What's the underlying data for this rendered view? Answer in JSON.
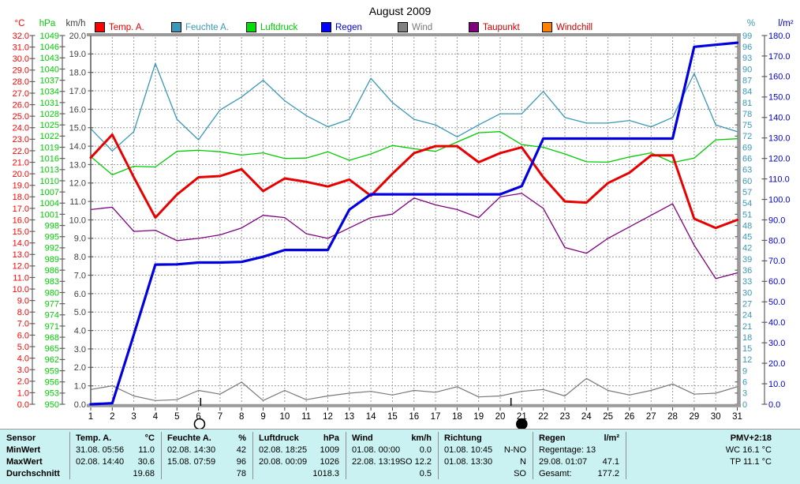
{
  "title": "August 2009",
  "axis_headers": {
    "left": [
      {
        "label": "°C",
        "color": "#ff0000"
      },
      {
        "label": "hPa",
        "color": "#00cc00"
      },
      {
        "label": "km/h",
        "color": "#404040"
      }
    ],
    "right": [
      {
        "label": "%",
        "color": "#3898b8"
      },
      {
        "label": "l/m²",
        "color": "#0000cc"
      }
    ]
  },
  "legend": [
    {
      "label": "Temp. A.",
      "swatch": "#ff0000",
      "text_color": "#e80000"
    },
    {
      "label": "Feuchte A.",
      "swatch": "#3898b8",
      "text_color": "#3898b8"
    },
    {
      "label": "Luftdruck",
      "swatch": "#00dd00",
      "text_color": "#00cc00"
    },
    {
      "label": "Regen",
      "swatch": "#0000ff",
      "text_color": "#0000e0"
    },
    {
      "label": "Wind",
      "swatch": "#808080",
      "text_color": "#787878"
    },
    {
      "label": "Taupunkt",
      "swatch": "#800080",
      "text_color": "#cc0000"
    },
    {
      "label": "Windchill",
      "swatch": "#ff8000",
      "text_color": "#cc0000"
    }
  ],
  "chart_data": {
    "type": "line",
    "title": "August 2009",
    "days": [
      1,
      2,
      3,
      4,
      5,
      6,
      7,
      8,
      9,
      10,
      11,
      12,
      13,
      14,
      15,
      16,
      17,
      18,
      19,
      20,
      21,
      22,
      23,
      24,
      25,
      26,
      27,
      28,
      29,
      30,
      31
    ],
    "grid": true,
    "axes": {
      "left": [
        {
          "name": "temperature",
          "unit": "°C",
          "min": 0,
          "max": 32,
          "step": 1,
          "decimals": 1,
          "color": "#ff0000"
        },
        {
          "name": "pressure",
          "unit": "hPa",
          "min": 950,
          "max": 1049,
          "step": 3,
          "decimals": 0,
          "color": "#00cc00"
        },
        {
          "name": "wind",
          "unit": "km/h",
          "min": 0,
          "max": 20,
          "step": 1,
          "decimals": 1,
          "color": "#404040"
        }
      ],
      "right": [
        {
          "name": "humidity",
          "unit": "%",
          "min": 0,
          "max": 99,
          "step": 3,
          "decimals": 0,
          "color": "#3898b8"
        },
        {
          "name": "rain",
          "unit": "l/m²",
          "min": 0,
          "max": 180,
          "step": 10,
          "decimals": 1,
          "color": "#0000cc"
        }
      ]
    },
    "series": [
      {
        "name": "Luftdruck",
        "axis": "pressure",
        "color": "#00cc00",
        "width": 1.3,
        "values": [
          1016.5,
          1011.6,
          1013.9,
          1013.7,
          1017.9,
          1018.2,
          1017.8,
          1016.9,
          1017.5,
          1016.0,
          1016.1,
          1017.8,
          1015.5,
          1017.2,
          1019.5,
          1018.6,
          1017.9,
          1020.4,
          1022.9,
          1023.2,
          1019.7,
          1019.0,
          1017.2,
          1015.1,
          1015.0,
          1016.4,
          1017.5,
          1014.9,
          1016.1,
          1021.0,
          1021.3
        ]
      },
      {
        "name": "Feuchte A.",
        "axis": "humidity",
        "color": "#3898b8",
        "width": 1.3,
        "values": [
          74,
          68,
          73.2,
          91.5,
          76.5,
          71,
          79,
          82.5,
          87,
          81.5,
          77.5,
          74.5,
          76.5,
          87.5,
          81,
          76.5,
          75,
          71.8,
          75,
          78,
          78,
          84,
          77,
          75.5,
          75.5,
          76.2,
          74.5,
          77,
          88.8,
          75,
          73.2
        ]
      },
      {
        "name": "Taupunkt",
        "axis": "temperature",
        "color": "#800080",
        "width": 1.3,
        "values": [
          16.9,
          17.1,
          15.0,
          15.1,
          14.2,
          14.4,
          14.7,
          15.3,
          16.4,
          16.2,
          14.8,
          14.4,
          15.3,
          16.2,
          16.5,
          17.9,
          17.3,
          16.9,
          16.2,
          18.0,
          18.3,
          17.0,
          13.6,
          13.1,
          14.4,
          15.4,
          16.4,
          17.4,
          13.8,
          10.9,
          11.4
        ]
      },
      {
        "name": "Wind",
        "axis": "wind",
        "color": "#787878",
        "width": 1.2,
        "values": [
          0.8,
          1.0,
          0.45,
          0.2,
          0.25,
          0.75,
          0.55,
          1.2,
          0.2,
          0.75,
          0.25,
          0.45,
          0.6,
          0.7,
          0.5,
          0.75,
          0.65,
          0.95,
          0.4,
          0.45,
          0.7,
          0.8,
          0.45,
          1.4,
          0.75,
          0.5,
          0.75,
          1.1,
          0.55,
          0.6,
          0.95
        ]
      },
      {
        "name": "Temp. A.",
        "axis": "temperature",
        "color": "#e80000",
        "width": 3,
        "values": [
          21.4,
          23.4,
          19.7,
          16.2,
          18.2,
          19.7,
          19.8,
          20.4,
          18.5,
          19.6,
          19.3,
          18.9,
          19.5,
          18.1,
          20.0,
          21.8,
          22.4,
          22.4,
          21.0,
          21.8,
          22.3,
          19.7,
          17.6,
          17.5,
          19.2,
          20.1,
          21.6,
          21.6,
          16.1,
          15.3,
          16.0
        ]
      },
      {
        "name": "Regen",
        "axis": "rain",
        "color": "#0000e0",
        "width": 3.2,
        "values": [
          0,
          0.5,
          34,
          68.2,
          68.3,
          69.2,
          69.2,
          69.5,
          72,
          75.3,
          75.3,
          75.3,
          95,
          102.5,
          102.5,
          102.5,
          102.5,
          102.5,
          102.5,
          102.5,
          106.5,
          129.7,
          129.7,
          129.7,
          129.7,
          129.7,
          129.7,
          129.7,
          174.5,
          175.5,
          176.5
        ]
      },
      {
        "name": "Windchill",
        "axis": "temperature",
        "color": "#ff8000",
        "width": 1.3,
        "values": null
      }
    ],
    "moon_marks": [
      {
        "type": "full-moon",
        "symbol": "open-circle",
        "day": 6.05,
        "tick_day": 6.1
      },
      {
        "type": "new-moon",
        "symbol": "filled-circle",
        "day": 21.0,
        "tick_day": 20.5
      }
    ]
  },
  "table": {
    "row_labels": [
      "Sensor",
      "MinWert",
      "MaxWert",
      "Durchschnitt"
    ],
    "columns": [
      {
        "header": "Temp. A.",
        "unit": "°C",
        "rows": [
          [
            "31.08.  05:56",
            "11.0"
          ],
          [
            "02.08.  14:40",
            "30.6"
          ],
          [
            "",
            "19.68"
          ]
        ]
      },
      {
        "header": "Feuchte A.",
        "unit": "%",
        "rows": [
          [
            "02.08.  14:30",
            "42"
          ],
          [
            "15.08.  07:59",
            "96"
          ],
          [
            "",
            "78"
          ]
        ]
      },
      {
        "header": "Luftdruck",
        "unit": "hPa",
        "rows": [
          [
            "02.08.  18:25",
            "1009"
          ],
          [
            "20.08.  00:09",
            "1026"
          ],
          [
            "",
            "1018.3"
          ]
        ]
      },
      {
        "header": "Wind",
        "unit": "km/h",
        "rows": [
          [
            "01.08.  00:00",
            "0.0"
          ],
          [
            "22.08.  13:19",
            "SO 12.2"
          ],
          [
            "",
            "0.5"
          ]
        ]
      },
      {
        "header": "Richtung",
        "unit": "",
        "rows": [
          [
            "01.08.  10:45",
            "N-NO"
          ],
          [
            "01.08.  13:30",
            "N"
          ],
          [
            "",
            "SO"
          ]
        ]
      },
      {
        "header": "Regen",
        "unit": "l/m²",
        "rows": [
          [
            "Regentage: 13",
            ""
          ],
          [
            "29.08.  01:07",
            "47.1"
          ],
          [
            "Gesamt:",
            "177.2"
          ]
        ]
      },
      {
        "header": "PMV+2:18",
        "unit": "",
        "align": "right",
        "rows": [
          [
            "",
            "WC 16.1 °C"
          ],
          [
            "",
            "TP 11.1 °C"
          ],
          [
            "",
            ""
          ]
        ]
      }
    ]
  }
}
